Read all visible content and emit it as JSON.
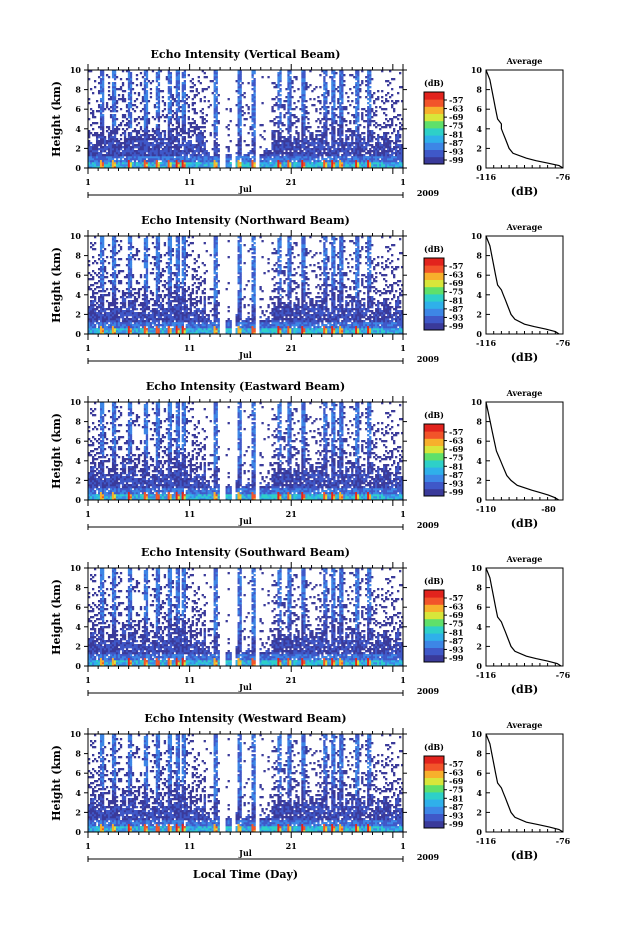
{
  "chart_data": [
    {
      "type": "heatmap",
      "title": "Echo Intensity (Vertical Beam)",
      "ylabel": "Height (km)",
      "yticks": [
        "0",
        "2",
        "4",
        "6",
        "8",
        "10"
      ],
      "xticks": [
        "1",
        "11",
        "21",
        "1"
      ],
      "month": "Jul",
      "year": "2009",
      "colorbar_label": "(dB)",
      "colorbar_ticks": [
        "-57",
        "-63",
        "-69",
        "-75",
        "-81",
        "-87",
        "-93",
        "-99"
      ],
      "profile": {
        "title": "Average",
        "xlabel": "(dB)",
        "xticks": [
          "-116",
          "-76"
        ],
        "xlim": [
          -116,
          -76
        ],
        "yticks": [
          "0",
          "2",
          "4",
          "6",
          "8",
          "10"
        ],
        "height": [
          0,
          0.25,
          0.5,
          0.75,
          1,
          1.5,
          2,
          2.5,
          3,
          3.5,
          4,
          4.5,
          5,
          6,
          7,
          8,
          9,
          10
        ],
        "db": [
          -76,
          -78,
          -84,
          -90,
          -95,
          -102,
          -104,
          -105,
          -106,
          -107,
          -108,
          -108,
          -110,
          -111,
          -112,
          -113,
          -114,
          -116
        ]
      }
    },
    {
      "type": "heatmap",
      "title": "Echo Intensity (Northward Beam)",
      "ylabel": "Height (km)",
      "yticks": [
        "0",
        "2",
        "4",
        "6",
        "8",
        "10"
      ],
      "xticks": [
        "1",
        "11",
        "21",
        "1"
      ],
      "month": "Jul",
      "year": "2009",
      "colorbar_label": "(dB)",
      "colorbar_ticks": [
        "-57",
        "-63",
        "-69",
        "-75",
        "-81",
        "-87",
        "-93",
        "-99"
      ],
      "profile": {
        "title": "Average",
        "xlabel": "(dB)",
        "xticks": [
          "-116",
          "-76"
        ],
        "xlim": [
          -116,
          -76
        ],
        "yticks": [
          "0",
          "2",
          "4",
          "6",
          "8",
          "10"
        ],
        "height": [
          0,
          0.25,
          0.5,
          0.75,
          1,
          1.5,
          2,
          2.5,
          3,
          3.5,
          4,
          4.5,
          5,
          6,
          7,
          8,
          9,
          10
        ],
        "db": [
          -78,
          -80,
          -85,
          -91,
          -96,
          -101,
          -103,
          -104,
          -105,
          -106,
          -107,
          -108,
          -110,
          -111,
          -112,
          -113,
          -114,
          -116
        ]
      }
    },
    {
      "type": "heatmap",
      "title": "Echo Intensity (Eastward Beam)",
      "ylabel": "Height (km)",
      "yticks": [
        "0",
        "2",
        "4",
        "6",
        "8",
        "10"
      ],
      "xticks": [
        "1",
        "11",
        "21",
        "1"
      ],
      "month": "Jul",
      "year": "2009",
      "colorbar_label": "(dB)",
      "colorbar_ticks": [
        "-57",
        "-63",
        "-69",
        "-75",
        "-81",
        "-87",
        "-93",
        "-99"
      ],
      "profile": {
        "title": "Average",
        "xlabel": "(dB)",
        "xticks": [
          "-110",
          "-80"
        ],
        "xlim": [
          -110,
          -73
        ],
        "yticks": [
          "0",
          "2",
          "4",
          "6",
          "8",
          "10"
        ],
        "height": [
          0,
          0.25,
          0.5,
          0.75,
          1,
          1.5,
          2,
          2.5,
          3,
          3.5,
          4,
          4.5,
          5,
          6,
          7,
          8,
          9,
          10
        ],
        "db": [
          -75,
          -77,
          -80,
          -84,
          -88,
          -95,
          -98,
          -100,
          -101,
          -102,
          -103,
          -104,
          -105,
          -106,
          -107,
          -108,
          -109,
          -110
        ]
      }
    },
    {
      "type": "heatmap",
      "title": "Echo Intensity (Southward Beam)",
      "ylabel": "Height (km)",
      "yticks": [
        "0",
        "2",
        "4",
        "6",
        "8",
        "10"
      ],
      "xticks": [
        "1",
        "11",
        "21",
        "1"
      ],
      "month": "Jul",
      "year": "2009",
      "colorbar_label": "(dB)",
      "colorbar_ticks": [
        "-57",
        "-63",
        "-69",
        "-75",
        "-81",
        "-87",
        "-93",
        "-99"
      ],
      "profile": {
        "title": "Average",
        "xlabel": "(dB)",
        "xticks": [
          "-116",
          "-76"
        ],
        "xlim": [
          -116,
          -76
        ],
        "yticks": [
          "0",
          "2",
          "4",
          "6",
          "8",
          "10"
        ],
        "height": [
          0,
          0.25,
          0.5,
          0.75,
          1,
          1.5,
          2,
          2.5,
          3,
          3.5,
          4,
          4.5,
          5,
          6,
          7,
          8,
          9,
          10
        ],
        "db": [
          -77,
          -79,
          -84,
          -90,
          -95,
          -101,
          -103,
          -104,
          -105,
          -106,
          -107,
          -108,
          -110,
          -111,
          -112,
          -113,
          -114,
          -116
        ]
      }
    },
    {
      "type": "heatmap",
      "title": "Echo Intensity (Westward Beam)",
      "ylabel": "Height (km)",
      "yticks": [
        "0",
        "2",
        "4",
        "6",
        "8",
        "10"
      ],
      "xticks": [
        "1",
        "11",
        "21",
        "1"
      ],
      "month": "Jul",
      "year": "2009",
      "colorbar_label": "(dB)",
      "colorbar_ticks": [
        "-57",
        "-63",
        "-69",
        "-75",
        "-81",
        "-87",
        "-93",
        "-99"
      ],
      "xlabel": "Local Time (Day)",
      "profile": {
        "title": "Average",
        "xlabel": "(dB)",
        "xticks": [
          "-116",
          "-76"
        ],
        "xlim": [
          -116,
          -76
        ],
        "yticks": [
          "0",
          "2",
          "4",
          "6",
          "8",
          "10"
        ],
        "height": [
          0,
          0.25,
          0.5,
          0.75,
          1,
          1.5,
          2,
          2.5,
          3,
          3.5,
          4,
          4.5,
          5,
          6,
          7,
          8,
          9,
          10
        ],
        "db": [
          -76,
          -78,
          -83,
          -89,
          -95,
          -101,
          -103,
          -104,
          -105,
          -106,
          -107,
          -108,
          -110,
          -111,
          -112,
          -113,
          -114,
          -116
        ]
      }
    }
  ],
  "colors": {
    "colormap": [
      "#3a3a9a",
      "#3f58c8",
      "#3d86e6",
      "#2fb0ea",
      "#2ed0c8",
      "#5fe06a",
      "#d8e63a",
      "#f7b02c",
      "#f2542a",
      "#e2231d"
    ],
    "background": "#ffffff"
  }
}
